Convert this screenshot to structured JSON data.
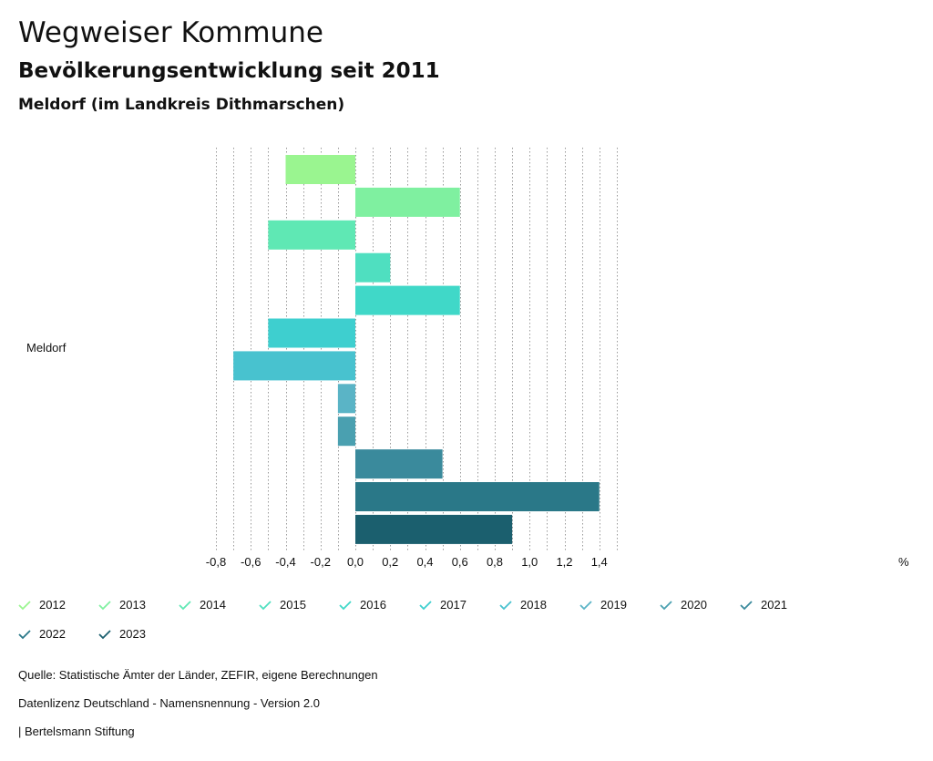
{
  "header": {
    "title": "Wegweiser Kommune",
    "subtitle": "Bevölkerungsentwicklung seit 2011",
    "region": "Meldorf (im Landkreis Dithmarschen)"
  },
  "chart_data": {
    "type": "bar",
    "orientation": "horizontal",
    "category": "Meldorf",
    "unit": "%",
    "xlim": [
      -0.8,
      1.5
    ],
    "ticks": [
      "-0,8",
      "-0,6",
      "-0,4",
      "-0,2",
      "0,0",
      "0,2",
      "0,4",
      "0,6",
      "0,8",
      "1,0",
      "1,2",
      "1,4"
    ],
    "tick_values": [
      -0.8,
      -0.6,
      -0.4,
      -0.2,
      0.0,
      0.2,
      0.4,
      0.6,
      0.8,
      1.0,
      1.2,
      1.4
    ],
    "series": [
      {
        "name": "2012",
        "value": -0.4,
        "color": "#9af590"
      },
      {
        "name": "2013",
        "value": 0.6,
        "color": "#7ff0a0"
      },
      {
        "name": "2014",
        "value": -0.5,
        "color": "#5fe8b4"
      },
      {
        "name": "2015",
        "value": 0.2,
        "color": "#4fdfc0"
      },
      {
        "name": "2016",
        "value": 0.6,
        "color": "#40d8c8"
      },
      {
        "name": "2017",
        "value": -0.5,
        "color": "#3ecfcf"
      },
      {
        "name": "2018",
        "value": -0.7,
        "color": "#48c2cf"
      },
      {
        "name": "2019",
        "value": -0.1,
        "color": "#5ab4c6"
      },
      {
        "name": "2020",
        "value": -0.1,
        "color": "#4aa0b0"
      },
      {
        "name": "2021",
        "value": 0.5,
        "color": "#3a8a9c"
      },
      {
        "name": "2022",
        "value": 1.4,
        "color": "#2a7888"
      },
      {
        "name": "2023",
        "value": 0.9,
        "color": "#1b5f6e"
      }
    ]
  },
  "footer": {
    "source": "Quelle: Statistische Ämter der Länder, ZEFIR, eigene Berechnungen",
    "license": "Datenlizenz Deutschland - Namensnennung - Version 2.0",
    "brand": "| Bertelsmann Stiftung"
  }
}
